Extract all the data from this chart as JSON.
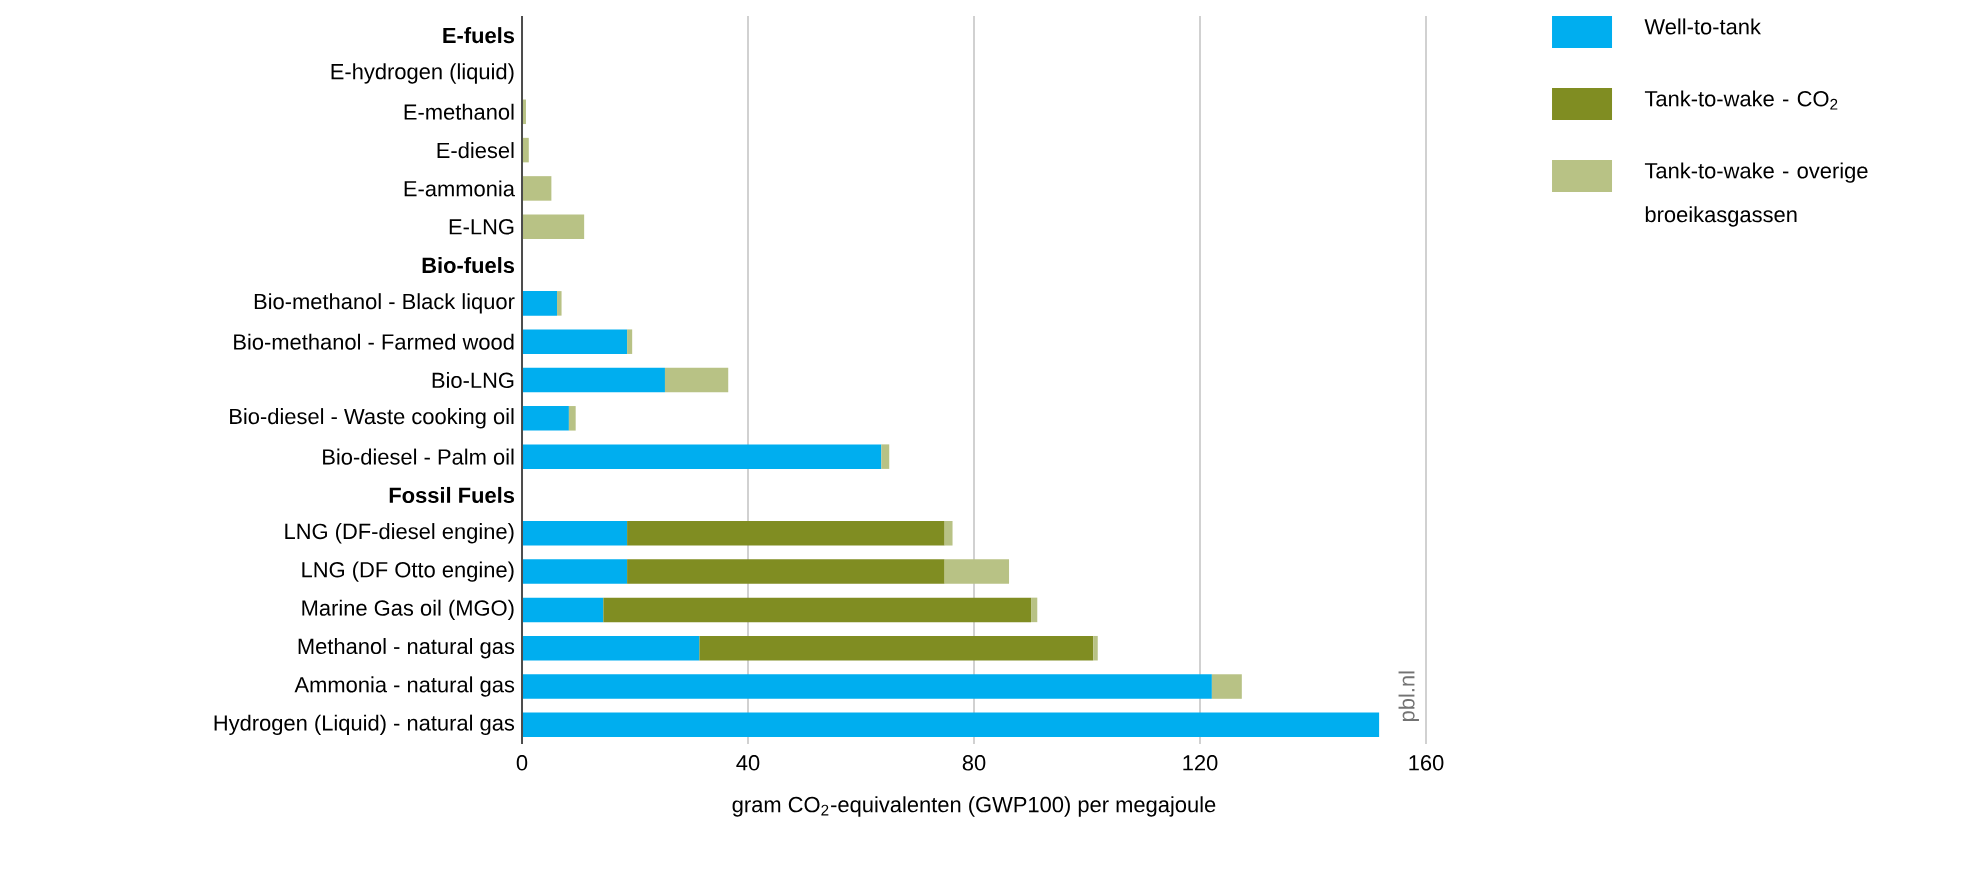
{
  "chart_data": {
    "type": "bar",
    "orientation": "horizontal",
    "stacked": true,
    "categories": [
      "E-fuels",
      "E-hydrogen (liquid)",
      "E-methanol",
      "E-diesel",
      "E-ammonia",
      "E-LNG",
      "Bio-fuels",
      "Bio-methanol - Black liquor",
      "Bio-methanol - Farmed wood",
      "Bio-LNG",
      "Bio-diesel - Waste cooking oil",
      "Bio-diesel - Palm oil",
      "Fossil Fuels",
      "LNG (DF-diesel engine)",
      "LNG (DF Otto engine)",
      "Marine Gas oil (MGO)",
      "Methanol - natural gas",
      "Ammonia - natural gas",
      "Hydrogen (Liquid) - natural gas"
    ],
    "series": [
      {
        "name": "Well-to-tank",
        "color": "#00aeef",
        "values": [
          null,
          null,
          null,
          null,
          null,
          null,
          null,
          6.2,
          18.6,
          25.3,
          8.3,
          63.6,
          null,
          18.6,
          18.6,
          14.4,
          31.4,
          122.1,
          151.7
        ]
      },
      {
        "name": "Tank-to-wake - CO$_{2}$",
        "color": "#808d22",
        "values": [
          null,
          null,
          null,
          null,
          null,
          null,
          null,
          null,
          null,
          null,
          null,
          null,
          null,
          56.2,
          56.2,
          75.7,
          69.7,
          null,
          null
        ]
      },
      {
        "name": "Tank-to-wake - overige broeikasgassen",
        "color": "#b8c285",
        "values": [
          null,
          0,
          0.7,
          1.2,
          5.2,
          11,
          null,
          0.8,
          0.9,
          11.2,
          1.2,
          1.4,
          null,
          1.4,
          11.4,
          1.1,
          0.8,
          5.3,
          null
        ]
      }
    ],
    "xlim": [
      0,
      160
    ],
    "xticks": [
      0,
      40,
      80,
      120,
      160
    ],
    "grid": "x",
    "legend": "top right",
    "xlabel": "gram CO$_{2}$-equivalenten (GWP100) per megajoule",
    "annotations": [
      "pbl.nl"
    ]
  }
}
